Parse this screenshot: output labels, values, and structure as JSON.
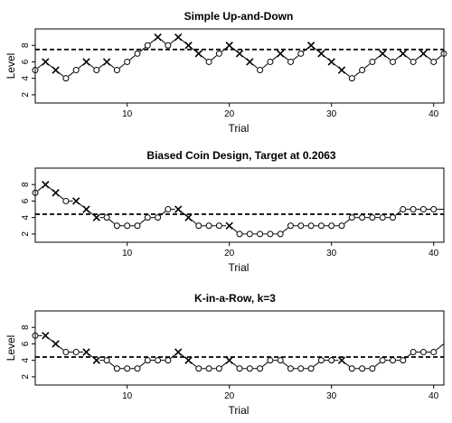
{
  "chart_data": [
    {
      "type": "line",
      "title": "Simple Up-and-Down",
      "xlabel": "Trial",
      "ylabel": "Level",
      "xlim": [
        1,
        41
      ],
      "ylim": [
        1,
        10
      ],
      "xticks": [
        "10",
        "20",
        "30",
        "40"
      ],
      "yticks": [
        "2",
        "4",
        "6",
        "8"
      ],
      "target_line": 7.5,
      "grid": false,
      "legend": "none",
      "series": [
        {
          "x": [
            1,
            2,
            3,
            4,
            5,
            6,
            7,
            8,
            9,
            10,
            11,
            12,
            13,
            14,
            15,
            16,
            17,
            18,
            19,
            20,
            21,
            22,
            23,
            24,
            25,
            26,
            27,
            28,
            29,
            30,
            31,
            32,
            33,
            34,
            35,
            36,
            37,
            38,
            39,
            40,
            41
          ],
          "values": [
            5,
            6,
            5,
            4,
            5,
            6,
            5,
            6,
            5,
            6,
            7,
            8,
            9,
            8,
            9,
            8,
            7,
            6,
            7,
            8,
            7,
            6,
            5,
            6,
            7,
            6,
            7,
            8,
            7,
            6,
            5,
            4,
            5,
            6,
            7,
            6,
            7,
            6,
            7,
            6,
            7
          ],
          "markers": [
            "o",
            "x",
            "x",
            "o",
            "o",
            "x",
            "o",
            "x",
            "o",
            "o",
            "o",
            "o",
            "x",
            "o",
            "x",
            "x",
            "x",
            "o",
            "o",
            "x",
            "x",
            "x",
            "o",
            "o",
            "x",
            "o",
            "o",
            "x",
            "x",
            "x",
            "x",
            "o",
            "o",
            "o",
            "x",
            "o",
            "x",
            "o",
            "x",
            "o",
            "o"
          ]
        }
      ]
    },
    {
      "type": "line",
      "title": "Biased Coin Design, Target at 0.2063",
      "xlabel": "Trial",
      "ylabel": "",
      "xlim": [
        1,
        41
      ],
      "ylim": [
        1,
        10
      ],
      "xticks": [
        "10",
        "20",
        "30",
        "40"
      ],
      "yticks": [
        "2",
        "4",
        "6",
        "8"
      ],
      "target_line": 4.4,
      "grid": false,
      "legend": "none",
      "series": [
        {
          "x": [
            1,
            2,
            3,
            4,
            5,
            6,
            7,
            8,
            9,
            10,
            11,
            12,
            13,
            14,
            15,
            16,
            17,
            18,
            19,
            20,
            21,
            22,
            23,
            24,
            25,
            26,
            27,
            28,
            29,
            30,
            31,
            32,
            33,
            34,
            35,
            36,
            37,
            38,
            39,
            40,
            41
          ],
          "values": [
            7,
            8,
            7,
            6,
            6,
            5,
            4,
            4,
            3,
            3,
            3,
            4,
            4,
            5,
            5,
            4,
            3,
            3,
            3,
            3,
            2,
            2,
            2,
            2,
            2,
            3,
            3,
            3,
            3,
            3,
            3,
            4,
            4,
            4,
            4,
            4,
            5,
            5,
            5,
            5,
            5
          ],
          "markers": [
            "o",
            "x",
            "x",
            "o",
            "x",
            "x",
            "x",
            "o",
            "o",
            "o",
            "o",
            "o",
            "o",
            "o",
            "x",
            "x",
            "o",
            "o",
            "o",
            "x",
            "o",
            "o",
            "o",
            "o",
            "o",
            "o",
            "o",
            "o",
            "o",
            "o",
            "o",
            "o",
            "o",
            "o",
            "o",
            "o",
            "o",
            "o",
            "o",
            "o",
            "none"
          ]
        }
      ]
    },
    {
      "type": "line",
      "title": "K-in-a-Row, k=3",
      "xlabel": "Trial",
      "ylabel": "Level",
      "xlim": [
        1,
        41
      ],
      "ylim": [
        1,
        10
      ],
      "xticks": [
        "10",
        "20",
        "30",
        "40"
      ],
      "yticks": [
        "2",
        "4",
        "6",
        "8"
      ],
      "target_line": 4.4,
      "grid": false,
      "legend": "none",
      "series": [
        {
          "x": [
            1,
            2,
            3,
            4,
            5,
            6,
            7,
            8,
            9,
            10,
            11,
            12,
            13,
            14,
            15,
            16,
            17,
            18,
            19,
            20,
            21,
            22,
            23,
            24,
            25,
            26,
            27,
            28,
            29,
            30,
            31,
            32,
            33,
            34,
            35,
            36,
            37,
            38,
            39,
            40,
            41
          ],
          "values": [
            7,
            7,
            6,
            5,
            5,
            5,
            4,
            4,
            3,
            3,
            3,
            4,
            4,
            4,
            5,
            4,
            3,
            3,
            3,
            4,
            3,
            3,
            3,
            4,
            4,
            3,
            3,
            3,
            4,
            4,
            4,
            3,
            3,
            3,
            4,
            4,
            4,
            5,
            5,
            5,
            6
          ],
          "markers": [
            "o",
            "x",
            "x",
            "o",
            "o",
            "x",
            "x",
            "o",
            "o",
            "o",
            "o",
            "o",
            "o",
            "o",
            "x",
            "x",
            "o",
            "o",
            "o",
            "x",
            "o",
            "o",
            "o",
            "o",
            "o",
            "o",
            "o",
            "o",
            "o",
            "o",
            "x",
            "o",
            "o",
            "o",
            "o",
            "o",
            "o",
            "o",
            "o",
            "o",
            "none"
          ]
        }
      ]
    }
  ]
}
